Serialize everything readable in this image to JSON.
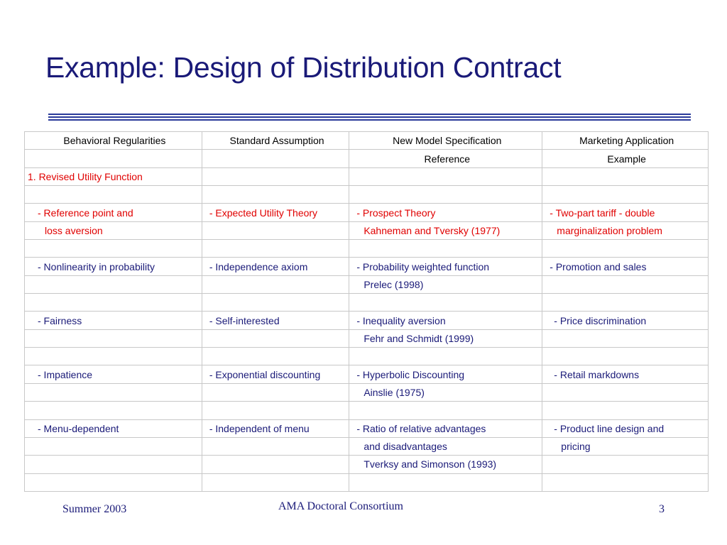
{
  "slide": {
    "title": "Example: Design of Distribution Contract",
    "footer": {
      "left": "Summer 2003",
      "center": "AMA Doctoral Consortium",
      "right": "3"
    }
  },
  "table": {
    "header": [
      [
        "Behavioral Regularities",
        "Standard Assumption",
        "New Model Specification",
        "Marketing Application"
      ],
      [
        "",
        "",
        "Reference",
        "Example"
      ]
    ],
    "rows": [
      [
        "1. Revised Utility Function",
        "",
        "",
        ""
      ],
      [
        "",
        "",
        "",
        ""
      ],
      [
        "- Reference point and",
        "- Expected Utility Theory",
        "- Prospect Theory",
        "- Two-part tariff - double"
      ],
      [
        "loss aversion",
        "",
        "Kahneman and Tversky (1977)",
        "marginalization problem"
      ],
      [
        "",
        "",
        "",
        ""
      ],
      [
        "- Nonlinearity in probability",
        "- Independence axiom",
        "- Probability weighted function",
        "-  Promotion and sales"
      ],
      [
        "",
        "",
        "Prelec (1998)",
        ""
      ],
      [
        "",
        "",
        "",
        ""
      ],
      [
        "- Fairness",
        "- Self-interested",
        "- Inequality aversion",
        "-  Price discrimination"
      ],
      [
        "",
        "",
        "Fehr and Schmidt (1999)",
        ""
      ],
      [
        "",
        "",
        "",
        ""
      ],
      [
        "- Impatience",
        "- Exponential discounting",
        "- Hyperbolic Discounting",
        "- Retail markdowns"
      ],
      [
        "",
        "",
        "Ainslie (1975)",
        ""
      ],
      [
        "",
        "",
        "",
        ""
      ],
      [
        "- Menu-dependent",
        "- Independent of menu",
        "- Ratio of relative advantages",
        "- Product line design and"
      ],
      [
        "",
        "",
        "and disadvantages",
        "pricing"
      ],
      [
        "",
        "",
        "Tverksy and Simonson (1993)",
        ""
      ],
      [
        "",
        "",
        "",
        ""
      ]
    ]
  },
  "colors": {
    "title": "#1a1a78",
    "section_heading": "#e00000",
    "highlight_text": "#e00000",
    "body_text": "#1a1a78",
    "grid_line": "#c8c8c8"
  }
}
